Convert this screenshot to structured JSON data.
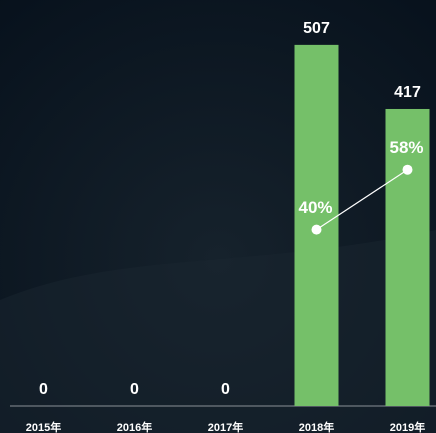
{
  "chart_data": {
    "type": "bar",
    "categories": [
      "2015年",
      "2016年",
      "2017年",
      "2018年",
      "2019年"
    ],
    "series": [
      {
        "values": [
          0,
          0,
          0,
          507,
          417
        ],
        "color": "#75c069"
      },
      {
        "type": "line",
        "axis": "y2",
        "values": [
          null,
          null,
          null,
          40,
          58
        ],
        "value_labels": [
          null,
          null,
          null,
          "40%",
          "58%"
        ],
        "color": "#ffffff"
      }
    ],
    "ylim": [
      0,
      570
    ],
    "y2lim": [
      -13,
      109
    ]
  }
}
